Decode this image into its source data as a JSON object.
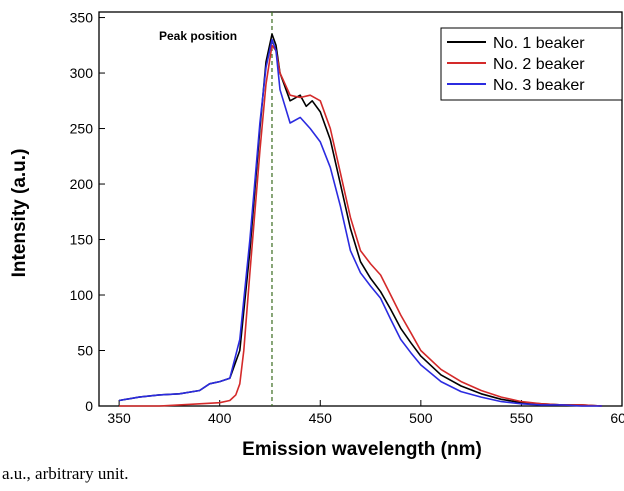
{
  "chart_data": {
    "type": "line",
    "xlabel": "Emission wavelength (nm)",
    "ylabel": "Intensity (a.u.)",
    "xlim": [
      340,
      600
    ],
    "ylim": [
      0,
      355
    ],
    "xticks": [
      350,
      400,
      450,
      500,
      550,
      600
    ],
    "yticks": [
      0,
      50,
      100,
      150,
      200,
      250,
      300,
      350
    ],
    "grid": false,
    "legend_position": "top-right",
    "annotation": {
      "text": "Peak position",
      "x": 426
    },
    "series": [
      {
        "name": "No. 1 beaker",
        "color": "#000000",
        "x": [
          350,
          360,
          370,
          380,
          390,
          395,
          400,
          405,
          410,
          415,
          420,
          423,
          426,
          428,
          430,
          435,
          440,
          443,
          446,
          450,
          455,
          460,
          465,
          470,
          475,
          480,
          485,
          490,
          495,
          500,
          510,
          520,
          530,
          540,
          550,
          560,
          570,
          580,
          590
        ],
        "values": [
          5,
          8,
          10,
          11,
          14,
          20,
          22,
          25,
          50,
          140,
          250,
          310,
          335,
          325,
          300,
          275,
          280,
          270,
          275,
          265,
          240,
          200,
          160,
          130,
          115,
          103,
          87,
          70,
          57,
          45,
          28,
          18,
          11,
          6,
          3,
          2,
          1,
          1,
          0
        ]
      },
      {
        "name": "No. 2 beaker",
        "color": "#d42a2a",
        "x": [
          350,
          360,
          370,
          380,
          390,
          400,
          405,
          408,
          410,
          412,
          415,
          420,
          423,
          426,
          428,
          430,
          435,
          440,
          445,
          450,
          455,
          460,
          465,
          470,
          475,
          480,
          485,
          490,
          495,
          500,
          510,
          520,
          530,
          540,
          550,
          560,
          570,
          580,
          590
        ],
        "values": [
          0,
          0,
          0,
          1,
          2,
          3,
          5,
          10,
          20,
          50,
          120,
          230,
          290,
          325,
          320,
          300,
          280,
          278,
          280,
          275,
          250,
          210,
          170,
          140,
          128,
          118,
          100,
          82,
          66,
          50,
          33,
          22,
          14,
          8,
          4,
          2,
          1,
          1,
          0
        ]
      },
      {
        "name": "No. 3 beaker",
        "color": "#2b2be0",
        "x": [
          350,
          360,
          370,
          380,
          390,
          395,
          400,
          405,
          410,
          415,
          420,
          423,
          426,
          428,
          430,
          435,
          440,
          445,
          450,
          455,
          460,
          465,
          470,
          475,
          480,
          485,
          490,
          495,
          500,
          510,
          520,
          530,
          540,
          550,
          560,
          570,
          580,
          590
        ],
        "values": [
          5,
          8,
          10,
          11,
          14,
          20,
          22,
          25,
          60,
          150,
          255,
          305,
          330,
          320,
          285,
          255,
          260,
          250,
          238,
          215,
          180,
          140,
          120,
          108,
          97,
          78,
          60,
          48,
          37,
          22,
          13,
          8,
          4,
          2,
          1,
          1,
          0,
          0
        ]
      }
    ]
  },
  "caption": "a.u., arbitrary unit."
}
